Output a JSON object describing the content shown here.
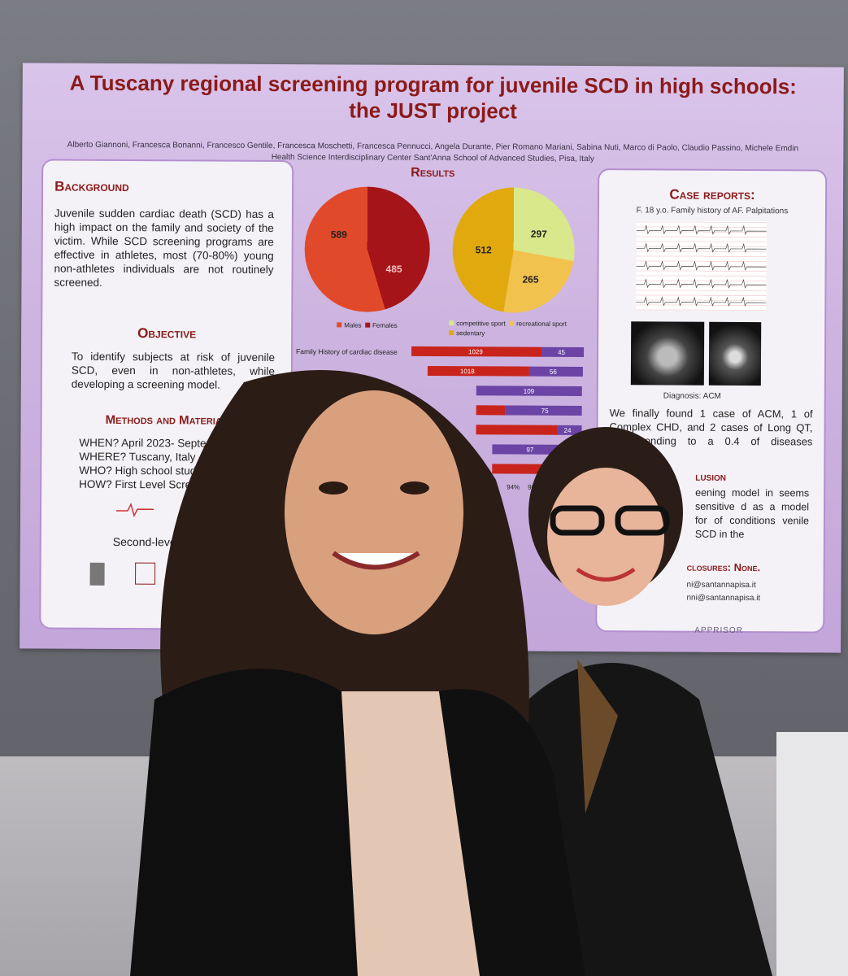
{
  "poster": {
    "title_line1": "A Tuscany regional screening program for juvenile SCD in high schools:",
    "title_line2": "the JUST project",
    "authors": "Alberto Giannoni, Francesca Bonanni, Francesco Gentile, Francesca Moschetti, Francesca Pennucci, Angela Durante, Pier Romano Mariani, Sabina Nuti, Marco di Paolo, Claudio Passino, Michele Emdin",
    "affiliation": "Health Science Interdisciplinary Center Sant'Anna School of Advanced Studies, Pisa, Italy",
    "background_heading": "Background",
    "background_text": "Juvenile sudden cardiac death (SCD) has a high impact on the family and society of the victim. While SCD screening programs are effective in athletes, most (70-80%) young non-athletes individuals are not routinely screened.",
    "objective_heading": "Objective",
    "objective_text": "To identify subjects at risk of juvenile SCD, even in non-athletes, while developing a screening model.",
    "methods_heading": "Methods and Material",
    "when": "WHEN? April 2023- September 2024",
    "where": "WHERE? Tuscany, Italy",
    "who": "WHO? High school students",
    "how": "HOW? First Level Screening",
    "second_level": "Second-level screening",
    "results_heading": "Results",
    "pie1_a": "589",
    "pie1_b": "485",
    "legend_males": "Males",
    "legend_females": "Females",
    "pie2_a": "297",
    "pie2_b": "512",
    "pie2_c": "265",
    "legend_competitive": "competitive sport",
    "legend_recreational": "recreational sport",
    "legend_sedentary": "sedentary",
    "bars_label": "Family History of cardiac disease",
    "bar_values": [
      "1029",
      "45",
      "1018",
      "56",
      "109",
      "75",
      "24",
      "97"
    ],
    "axis_94": "94%",
    "axis_96": "96%",
    "case_heading": "Case reports:",
    "case_sub": "F. 18 y.o.  Family history of AF.  Palpitations",
    "diagnosis": "Diagnosis: ACM",
    "case_text": "We finally found 1 case of ACM, 1 of Complex CHD, and 2 cases of Long QT, corresponding to a 0.4 of diseases associated",
    "conclusion_heading": "lusion",
    "conclusion_text": "eening model in seems sensitive d as a model for of conditions venile SCD in the",
    "disclosures": "closures: None.",
    "email1": "ni@santannapisa.it",
    "email2": "nni@santannapisa.it",
    "brand": "APPRISOR"
  }
}
